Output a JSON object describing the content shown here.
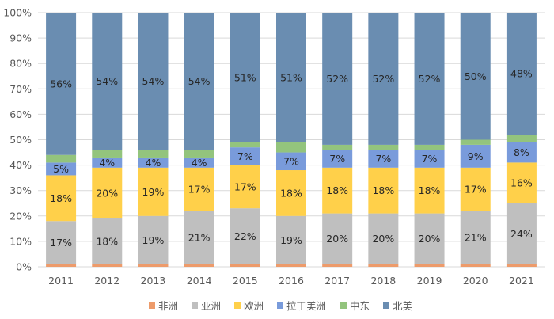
{
  "chart_data": {
    "type": "bar",
    "stacked": true,
    "percent": true,
    "categories": [
      "2011",
      "2012",
      "2013",
      "2014",
      "2015",
      "2016",
      "2017",
      "2018",
      "2019",
      "2020",
      "2021"
    ],
    "series": [
      {
        "name": "非洲",
        "color": "#ED9B6B",
        "values": [
          1,
          1,
          1,
          1,
          1,
          1,
          1,
          1,
          1,
          1,
          1
        ],
        "labeled": false
      },
      {
        "name": "亚洲",
        "color": "#BFBFBF",
        "values": [
          17,
          18,
          19,
          21,
          22,
          19,
          20,
          20,
          20,
          21,
          24
        ],
        "labeled": true
      },
      {
        "name": "欧洲",
        "color": "#FFD04A",
        "values": [
          18,
          20,
          19,
          17,
          17,
          18,
          18,
          18,
          18,
          17,
          16
        ],
        "labeled": true
      },
      {
        "name": "拉丁美洲",
        "color": "#799BDB",
        "values": [
          5,
          4,
          4,
          4,
          7,
          7,
          7,
          7,
          7,
          9,
          8
        ],
        "labeled": true
      },
      {
        "name": "中东",
        "color": "#93C47D",
        "values": [
          3,
          3,
          3,
          3,
          2,
          4,
          2,
          2,
          2,
          2,
          3
        ],
        "labeled": false
      },
      {
        "name": "北美",
        "color": "#6A8DB1",
        "values": [
          56,
          54,
          54,
          54,
          51,
          51,
          52,
          52,
          52,
          50,
          48
        ],
        "labeled": true
      }
    ],
    "yticks": [
      "0%",
      "10%",
      "20%",
      "30%",
      "40%",
      "50%",
      "60%",
      "70%",
      "80%",
      "90%",
      "100%"
    ],
    "ylim": [
      0,
      100
    ],
    "grid": true,
    "legend": "bottom"
  }
}
